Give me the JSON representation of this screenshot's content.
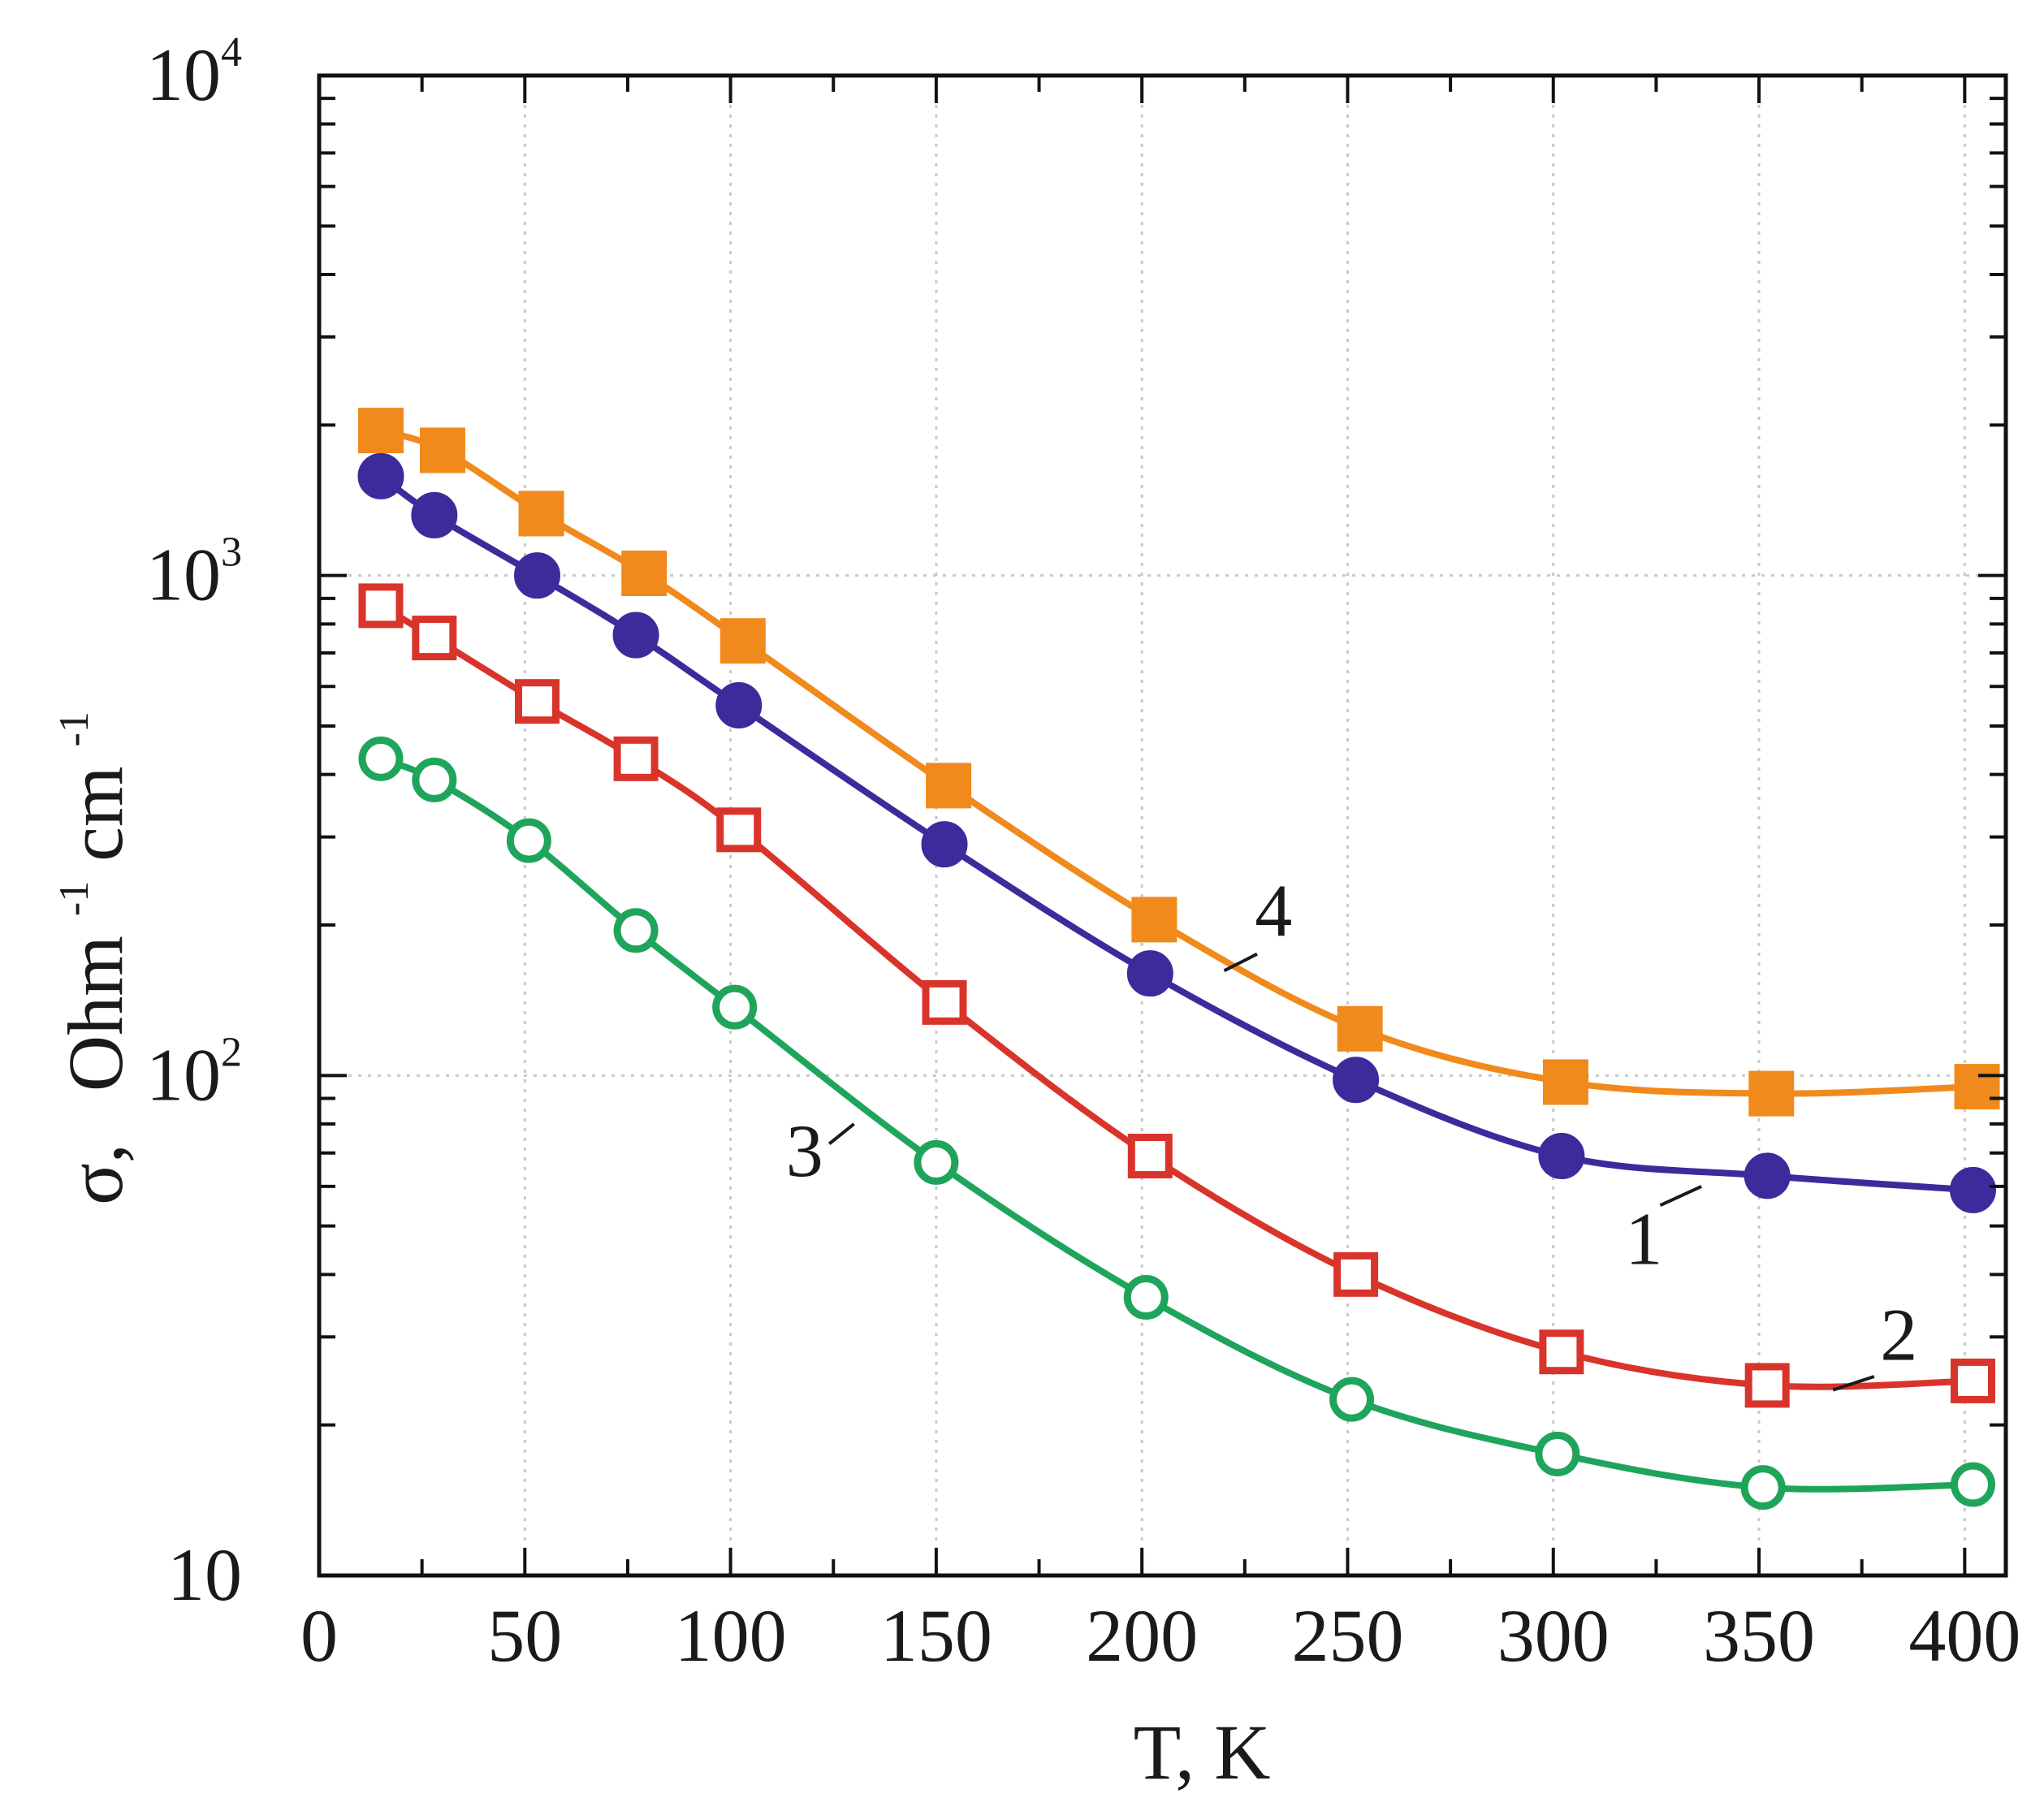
{
  "chart_data": {
    "type": "line",
    "title": "",
    "xlabel": "T, K",
    "ylabel": "σ,  Ohm-1cm-1",
    "ylabel_parts": {
      "symbol": "σ,",
      "unit1": "Ohm",
      "exp1": "-1",
      "unit2": "cm",
      "exp2": "-1"
    },
    "xlim": [
      0,
      410
    ],
    "ylim": [
      10,
      10000
    ],
    "yscale": "log",
    "grid": true,
    "x_ticks": [
      0,
      50,
      100,
      150,
      200,
      250,
      300,
      350,
      400
    ],
    "x_tick_labels": [
      "0",
      "50",
      "100",
      "150",
      "200",
      "250",
      "300",
      "350",
      "400"
    ],
    "y_tick_labels": [
      {
        "value": 10,
        "base": "10",
        "exp": ""
      },
      {
        "value": 100,
        "base": "10",
        "exp": "2"
      },
      {
        "value": 1000,
        "base": "10",
        "exp": "3"
      },
      {
        "value": 10000,
        "base": "10",
        "exp": "4"
      }
    ],
    "series": [
      {
        "name": "1",
        "color": "#3d2b9c",
        "marker": "circle",
        "filled": true,
        "x": [
          15,
          28,
          53,
          77,
          102,
          152,
          202,
          252,
          302,
          352,
          402
        ],
        "y": [
          1580,
          1320,
          1000,
          760,
          550,
          290,
          160,
          98,
          69,
          63,
          59
        ],
        "label": {
          "text": "1",
          "x": 322,
          "y": 42,
          "lead_from": [
            326,
            55
          ],
          "lead_to": [
            336,
            60
          ]
        }
      },
      {
        "name": "2",
        "color": "#d9342b",
        "marker": "square",
        "filled": false,
        "x": [
          15,
          28,
          53,
          77,
          102,
          152,
          202,
          252,
          302,
          352,
          402
        ],
        "y": [
          870,
          750,
          560,
          430,
          310,
          140,
          69,
          40,
          28,
          24,
          24.5
        ],
        "label": {
          "text": "2",
          "x": 384,
          "y": 27,
          "lead_from": [
            378,
            25
          ],
          "lead_to": [
            368,
            23.5
          ]
        }
      },
      {
        "name": "3",
        "color": "#1fa55b",
        "marker": "circle",
        "filled": false,
        "x": [
          15,
          28,
          51,
          77,
          101,
          150,
          201,
          251,
          301,
          351,
          402
        ],
        "y": [
          430,
          390,
          295,
          195,
          137,
          67,
          36,
          22.5,
          17.5,
          15,
          15.2
        ],
        "label": {
          "text": "3",
          "x": 118,
          "y": 63,
          "lead_from": [
            124,
            73
          ],
          "lead_to": [
            130,
            80
          ]
        }
      },
      {
        "name": "4",
        "color": "#f08a1c",
        "marker": "square",
        "filled": true,
        "x": [
          15,
          30,
          54,
          79,
          103,
          153,
          203,
          253,
          303,
          353,
          403
        ],
        "y": [
          1950,
          1780,
          1330,
          1010,
          740,
          380,
          205,
          124,
          97,
          92,
          95
        ],
        "label": {
          "text": "4",
          "x": 232,
          "y": 190,
          "lead_from": [
            228,
            175
          ],
          "lead_to": [
            220,
            162
          ]
        }
      }
    ]
  }
}
